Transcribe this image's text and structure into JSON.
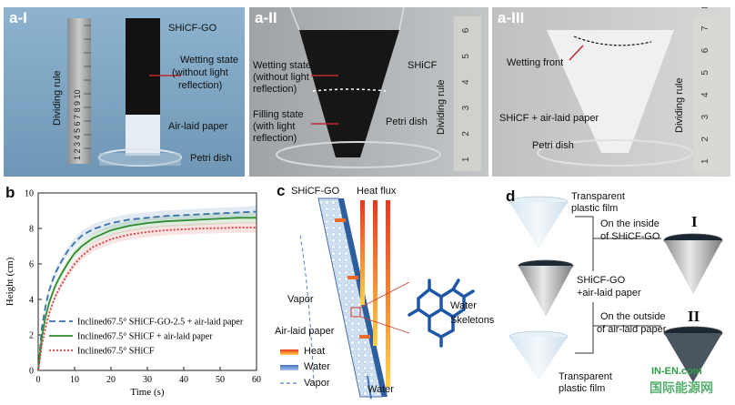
{
  "panels": {
    "a1": {
      "tag": "a-I",
      "label_shicf_go": "SHiCF-GO",
      "label_wetting_state": "Wetting state",
      "label_without_light": "(without  light",
      "label_reflection": "reflection)",
      "label_air_laid": "Air-laid paper",
      "label_petri": "Petri dish",
      "label_dividing_rule": "Dividing rule",
      "ruler_digits": "1 2 3 4 5 6 7 8 9 10"
    },
    "a2": {
      "tag": "a-II",
      "label_wetting_state": "Wetting state",
      "label_without_light": "(without light",
      "label_reflection": "reflection)",
      "label_shicf": "SHiCF",
      "label_filling_state": "Filling state",
      "label_with_light": "(with light",
      "label_reflection2": "reflection)",
      "label_petri": "Petri dish",
      "label_dividing_rule": "Dividing rule",
      "ruler_digits": "1 2 3 4 5 6"
    },
    "a3": {
      "tag": "a-III",
      "label_wetting_front": "Wetting front",
      "label_shicf_air": "SHiCF + air-laid paper",
      "label_petri": "Petri dish",
      "label_dividing_rule": "Dividing rule",
      "ruler_digits": "1 2 3 4 5 6 7 8"
    },
    "b": {
      "tag": "b"
    },
    "c": {
      "tag": "c",
      "label_shicf_go": "SHiCF-GO",
      "label_heat_flux": "Heat flux",
      "label_vapor": "Vapor",
      "label_air_laid": "Air-laid paper",
      "label_water_r": "Water",
      "label_skeletons": "Skeletons",
      "label_water_bottom": "Water",
      "legend_heat": "Heat",
      "legend_water": "Water",
      "legend_vapor": "Vapor"
    },
    "d": {
      "tag": "d",
      "label_transparent1": "Transparent",
      "label_plastic1": "plastic film",
      "label_on_inside": "On the inside",
      "label_of_shicf_go": "of SHiCF-GO",
      "label_roman1": "I",
      "label_shicf_go": "SHiCF-GO",
      "label_air_laid": "+air-laid paper",
      "label_on_outside": "On the outside",
      "label_of_air_laid": "of air-laid paper",
      "label_roman2": "II",
      "label_transparent2": "Transparent",
      "label_plastic2": "plastic film"
    }
  },
  "watermark": {
    "line1": "IN-EN.com",
    "line2": "国际能源网"
  },
  "chart_data": {
    "type": "line",
    "title": "",
    "xlabel": "Time (s)",
    "ylabel": "Height (cm)",
    "xlim": [
      0,
      60
    ],
    "ylim": [
      0,
      10
    ],
    "xticks": [
      0,
      10,
      20,
      30,
      40,
      50,
      60
    ],
    "yticks": [
      0,
      2,
      4,
      6,
      8,
      10
    ],
    "x": [
      0,
      1,
      2,
      3,
      4,
      5,
      6,
      8,
      10,
      12,
      15,
      20,
      25,
      30,
      35,
      40,
      45,
      50,
      55,
      60
    ],
    "series": [
      {
        "name": "Inclined67.5° SHiCF-GO-2.5 + air-laid paper",
        "style": "dashed",
        "color": "#3a6fb0",
        "values": [
          0,
          2.4,
          3.6,
          4.5,
          5.1,
          5.6,
          6.0,
          6.7,
          7.2,
          7.6,
          7.95,
          8.3,
          8.5,
          8.6,
          8.7,
          8.75,
          8.8,
          8.85,
          8.9,
          8.95
        ]
      },
      {
        "name": "Inclined67.5° SHiCF + air-laid paper",
        "style": "solid",
        "color": "#2e8b2e",
        "values": [
          0,
          1.9,
          3.0,
          3.8,
          4.4,
          4.9,
          5.3,
          6.0,
          6.6,
          7.0,
          7.45,
          7.9,
          8.15,
          8.3,
          8.4,
          8.45,
          8.5,
          8.55,
          8.6,
          8.6
        ]
      },
      {
        "name": "Inclined67.5° SHiCF",
        "style": "dotted",
        "color": "#d84040",
        "values": [
          0,
          1.4,
          2.4,
          3.2,
          3.8,
          4.3,
          4.7,
          5.4,
          6.0,
          6.45,
          6.95,
          7.4,
          7.65,
          7.8,
          7.9,
          7.95,
          8.0,
          8.02,
          8.05,
          8.05
        ]
      }
    ],
    "legend_placement": "lower-right",
    "grid": false
  }
}
